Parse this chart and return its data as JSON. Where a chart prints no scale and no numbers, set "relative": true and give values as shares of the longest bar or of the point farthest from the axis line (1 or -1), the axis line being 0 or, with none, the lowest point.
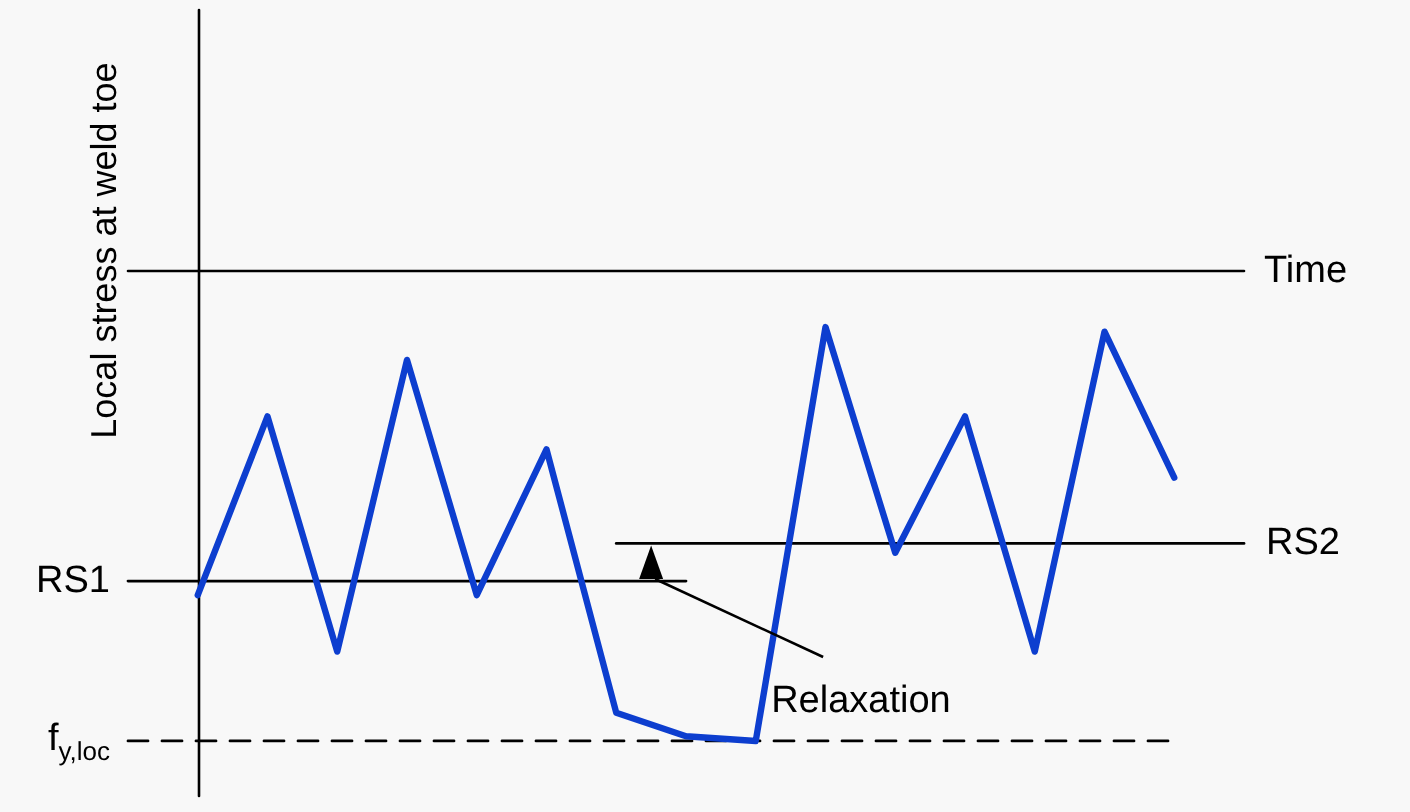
{
  "chart_data": {
    "type": "line",
    "relative": true,
    "xlabel": "Time",
    "ylabel": "Local stress at weld toe",
    "marker": "none",
    "line_style": "solid",
    "categories": [
      null,
      null,
      null,
      null,
      null,
      null,
      null,
      null,
      null,
      null,
      null,
      null,
      null,
      null,
      null,
      null,
      null
    ],
    "series": [
      {
        "color": "#0d3ecf",
        "values": [
          null,
          -0.69,
          -0.31,
          -0.81,
          -0.19,
          -0.69,
          -0.38,
          -0.94,
          -0.99,
          -1,
          -0.12,
          -0.6,
          -0.31,
          -0.81,
          -0.13,
          -0.44,
          null
        ]
      },
      {
        "name": "RS1",
        "color": "#000000",
        "values": [
          -0.66,
          -0.66,
          -0.66,
          -0.66,
          -0.66,
          -0.66,
          -0.66,
          -0.66,
          -0.66,
          null,
          null,
          null,
          null,
          null,
          null,
          null,
          null
        ]
      },
      {
        "name": "RS2",
        "color": "#000000",
        "values": [
          null,
          null,
          null,
          null,
          null,
          null,
          null,
          -0.58,
          -0.58,
          -0.58,
          -0.58,
          -0.58,
          -0.58,
          -0.58,
          -0.58,
          -0.58,
          -0.58
        ]
      },
      {
        "name": "f$_{y,loc}$",
        "color": "#000000",
        "line_style": "dashed",
        "values": [
          -1,
          -1,
          -1,
          -1,
          -1,
          -1,
          -1,
          -1,
          -1,
          -1,
          -1,
          -1,
          -1,
          -1,
          -1,
          -1,
          null
        ]
      }
    ],
    "annotations": [
      "Relaxation"
    ]
  }
}
